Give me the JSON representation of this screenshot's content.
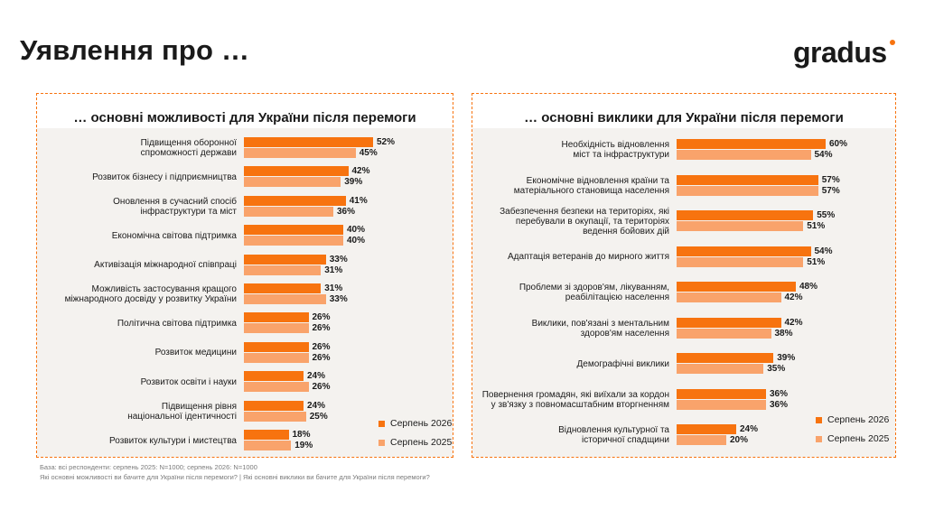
{
  "page": {
    "title": "Уявлення про …",
    "logo": "gradus",
    "footnote_base": "База: всі респонденти: серпень 2025: N=1000; серпень 2026: N=1000",
    "footnote_questions": "Які основні можливості ви бачите для України після перемоги? | Які основні виклики ви бачите для України після перемоги?"
  },
  "colors": {
    "accent": "#f7730f",
    "series_2026": "#f7730f",
    "series_2025": "#f9a36b",
    "panel_bg": "#f4f2ef"
  },
  "chart_data": [
    {
      "type": "bar",
      "orientation": "horizontal",
      "title": "… основні можливості для України після перемоги",
      "categories": [
        "Підвищення оборонної спроможності держави",
        "Розвиток бізнесу і підприємництва",
        "Оновлення в сучасний спосіб інфраструктури та міст",
        "Економічна світова підтримка",
        "Активізація міжнародної співпраці",
        "Можливість застосування кращого міжнародного досвіду у розвитку України",
        "Політична світова підтримка",
        "Розвиток медицини",
        "Розвиток освіти і науки",
        "Підвищення рівня національної ідентичності",
        "Розвиток культури і мистецтва"
      ],
      "series": [
        {
          "name": "Серпень 2026",
          "values": [
            52,
            42,
            41,
            40,
            33,
            31,
            26,
            26,
            24,
            24,
            18
          ]
        },
        {
          "name": "Серпень 2025",
          "values": [
            45,
            39,
            36,
            40,
            31,
            33,
            26,
            26,
            26,
            25,
            19
          ]
        }
      ],
      "value_suffix": "%",
      "xlim": [
        0,
        100
      ],
      "legend_position": "bottom-right"
    },
    {
      "type": "bar",
      "orientation": "horizontal",
      "title": "… основні виклики для України після перемоги",
      "categories": [
        "Необхідність відновлення міст та інфраструктури",
        "Економічне відновлення країни та матеріального становища населення",
        "Забезпечення безпеки на територіях, які перебували в окупації, та територіях ведення бойових дій",
        "Адаптація ветеранів до мирного життя",
        "Проблеми зі здоров'ям, лікуванням, реабілітацією населення",
        "Виклики, пов'язані з ментальним здоров'ям населення",
        "Демографічні виклики",
        "Повернення громадян, які виїхали за кордон у зв'язку з повномасштабним вторгненням",
        "Відновлення культурної та історичної спадщини"
      ],
      "series": [
        {
          "name": "Серпень 2026",
          "values": [
            60,
            57,
            55,
            54,
            48,
            42,
            39,
            36,
            24
          ]
        },
        {
          "name": "Серпень 2025",
          "values": [
            54,
            57,
            51,
            51,
            42,
            38,
            35,
            36,
            20
          ]
        }
      ],
      "value_suffix": "%",
      "xlim": [
        0,
        100
      ],
      "legend_position": "bottom-right"
    }
  ]
}
